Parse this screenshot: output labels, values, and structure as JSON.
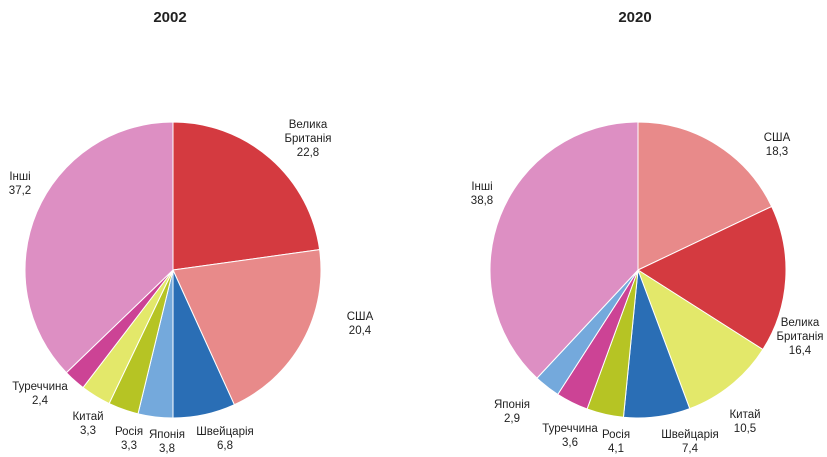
{
  "chart_data": [
    {
      "type": "pie",
      "title": "2002",
      "slices": [
        {
          "label": [
            "Велика",
            "Британія"
          ],
          "value": 22.8,
          "value_text": "22,8",
          "color": "#d43a40"
        },
        {
          "label": [
            "США"
          ],
          "value": 20.4,
          "value_text": "20,4",
          "color": "#e88a8a"
        },
        {
          "label": [
            "Швейцарія"
          ],
          "value": 6.8,
          "value_text": "6,8",
          "color": "#2a6eb5"
        },
        {
          "label": [
            "Японія"
          ],
          "value": 3.8,
          "value_text": "3,8",
          "color": "#74a9dc"
        },
        {
          "label": [
            "Росія"
          ],
          "value": 3.3,
          "value_text": "3,3",
          "color": "#b6c424"
        },
        {
          "label": [
            "Китай"
          ],
          "value": 3.3,
          "value_text": "3,3",
          "color": "#e3e86a"
        },
        {
          "label": [
            "Туреччина"
          ],
          "value": 2.4,
          "value_text": "2,4",
          "color": "#cc4395"
        },
        {
          "label": [
            "Інші"
          ],
          "value": 37.2,
          "value_text": "37,2",
          "color": "#dd8fc3"
        }
      ]
    },
    {
      "type": "pie",
      "title": "2020",
      "slices": [
        {
          "label": [
            "США"
          ],
          "value": 18.3,
          "value_text": "18,3",
          "color": "#e88a8a"
        },
        {
          "label": [
            "Велика",
            "Британія"
          ],
          "value": 16.4,
          "value_text": "16,4",
          "color": "#d43a40"
        },
        {
          "label": [
            "Китай"
          ],
          "value": 10.5,
          "value_text": "10,5",
          "color": "#e3e86a"
        },
        {
          "label": [
            "Швейцарія"
          ],
          "value": 7.4,
          "value_text": "7,4",
          "color": "#2a6eb5"
        },
        {
          "label": [
            "Росія"
          ],
          "value": 4.1,
          "value_text": "4,1",
          "color": "#b6c424"
        },
        {
          "label": [
            "Туреччина"
          ],
          "value": 3.6,
          "value_text": "3,6",
          "color": "#cc4395"
        },
        {
          "label": [
            "Японія"
          ],
          "value": 2.9,
          "value_text": "2,9",
          "color": "#74a9dc"
        },
        {
          "label": [
            "Інші"
          ],
          "value": 38.8,
          "value_text": "38,8",
          "color": "#dd8fc3"
        }
      ]
    }
  ]
}
